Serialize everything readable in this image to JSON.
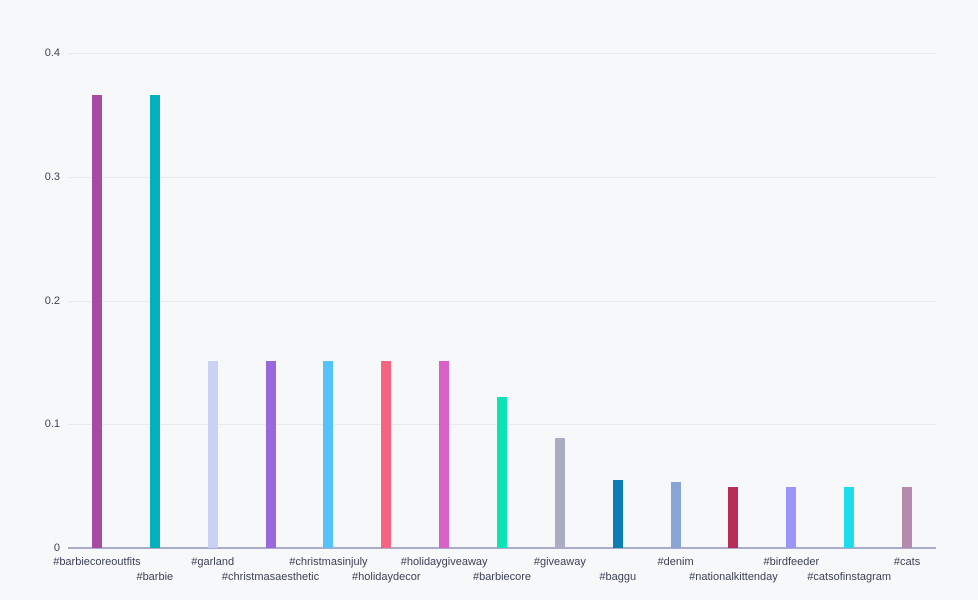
{
  "chart_data": {
    "type": "bar",
    "title": "",
    "xlabel": "",
    "ylabel": "",
    "ylim": [
      0,
      0.4
    ],
    "ytick_values": [
      0,
      0.1,
      0.2,
      0.3,
      0.4
    ],
    "ytick_labels": [
      "0",
      "0.1",
      "0.2",
      "0.3",
      "0.4"
    ],
    "grid": true,
    "legend": "none",
    "categories": [
      "#barbiecoreoutfits",
      "#barbie",
      "#garland",
      "#christmasaesthetic",
      "#christmasinjuly",
      "#holidaydecor",
      "#holidaygiveaway",
      "#barbiecore",
      "#giveaway",
      "#baggu",
      "#denim",
      "#nationalkittenday",
      "#birdfeeder",
      "#catsofinstagram",
      "#cats"
    ],
    "values": [
      0.366,
      0.366,
      0.151,
      0.151,
      0.151,
      0.151,
      0.151,
      0.122,
      0.089,
      0.055,
      0.053,
      0.049,
      0.049,
      0.049,
      0.049
    ],
    "bar_colors": [
      "#a84a9f",
      "#03b1bd",
      "#c9d2f2",
      "#9a67dd",
      "#55c3fa",
      "#f6647f",
      "#d960c9",
      "#0de3b3",
      "#abadc3",
      "#0b7fb4",
      "#88a5d6",
      "#b72d56",
      "#9a96f7",
      "#1edce9",
      "#b58aac"
    ],
    "colors": {
      "background": "#f7f8fa",
      "gridline": "#e9eaef",
      "axis_line": "#a9adc9",
      "tick_label_text": "#3b4256"
    }
  }
}
